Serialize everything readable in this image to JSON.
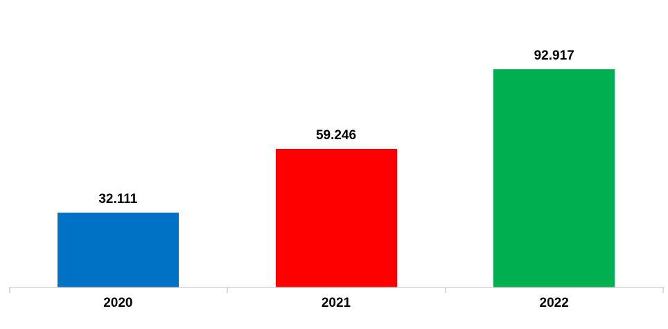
{
  "chart_data": {
    "type": "bar",
    "title": "",
    "xlabel": "",
    "ylabel": "",
    "categories": [
      "2020",
      "2021",
      "2022"
    ],
    "values": [
      32111,
      59246,
      92917
    ],
    "value_labels": [
      "32.111",
      "59.246",
      "92.917"
    ],
    "series_colors": [
      "#0072C5",
      "#FF0000",
      "#00B050"
    ],
    "ylim": [
      0,
      100000
    ],
    "grid": false,
    "legend": "none",
    "axis_line_color": "#D9D9D9",
    "label_color": "#000000",
    "background_color": "#FFFFFF"
  }
}
